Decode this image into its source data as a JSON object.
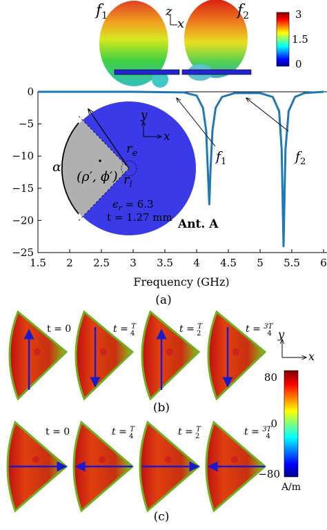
{
  "top_panel": {
    "pattern_labels": [
      "f",
      "f"
    ],
    "pattern_subs": [
      "1",
      "2"
    ],
    "axis_z": "z",
    "axis_x": "x",
    "colorbar_ticks": [
      "3",
      "1.5",
      "0"
    ]
  },
  "chart_data": {
    "type": "line",
    "xlabel": "Frequency (GHz)",
    "ylabel": "",
    "xlim": [
      1.5,
      6
    ],
    "ylim": [
      -25,
      0
    ],
    "x_ticks": [
      "1.5",
      "2",
      "2.5",
      "3",
      "3.5",
      "4",
      "4.5",
      "5",
      "5.5",
      "6"
    ],
    "y_ticks": [
      "0",
      "−5",
      "−10",
      "−15",
      "−20",
      "−25"
    ],
    "grid": false,
    "color": "#1f77b4",
    "series": [
      {
        "x": [
          1.5,
          2.0,
          3.0,
          3.8,
          4.0,
          4.1,
          4.15,
          4.18,
          4.2,
          4.22,
          4.25,
          4.3,
          4.4,
          4.6,
          5.0,
          5.2,
          5.3,
          5.34,
          5.37,
          5.4,
          5.45,
          5.55,
          5.7,
          6.0
        ],
        "y": [
          0,
          0,
          0,
          -0.1,
          -0.6,
          -2.5,
          -6,
          -13,
          -17.5,
          -12,
          -6,
          -2.5,
          -0.8,
          -0.2,
          -0.2,
          -0.8,
          -3,
          -9,
          -24,
          -9,
          -3,
          -0.8,
          -0.2,
          0
        ]
      }
    ],
    "annotations": {
      "f1": {
        "text": "f",
        "sub": "1",
        "x": 4.2
      },
      "f2": {
        "text": "f",
        "sub": "2",
        "x": 5.37
      }
    }
  },
  "inset": {
    "label": "Ant. A",
    "eps": "ϵ",
    "eps_sub": "r",
    "eps_val": " = 6.3",
    "thickness": "t = 1.27 mm",
    "r_e": "r",
    "r_e_sub": "e",
    "r_i": "r",
    "r_i_sub": "i",
    "alpha": "α",
    "coord": "(ρ′, ϕ′)",
    "axis_y": "y",
    "axis_x": "x"
  },
  "captions": {
    "a": "(a)",
    "b": "(b)",
    "c": "(c)"
  },
  "time_labels": {
    "t0": "t = 0",
    "t_prefix": "t = ",
    "fracs": [
      {
        "num": "T",
        "den": "4"
      },
      {
        "num": "T",
        "den": "2"
      },
      {
        "num": "3T",
        "den": "4"
      }
    ]
  },
  "current_colorbar": {
    "ticks": [
      "80",
      "0",
      "−80"
    ],
    "unit": "A/m"
  },
  "axes_bc": {
    "y": "y",
    "x": "x"
  },
  "colors": {
    "curve": "#1f77b4",
    "inset_disk": "#3a3ae8",
    "inset_sector": "#b0b0b0",
    "arrow": "#1a1acc"
  }
}
